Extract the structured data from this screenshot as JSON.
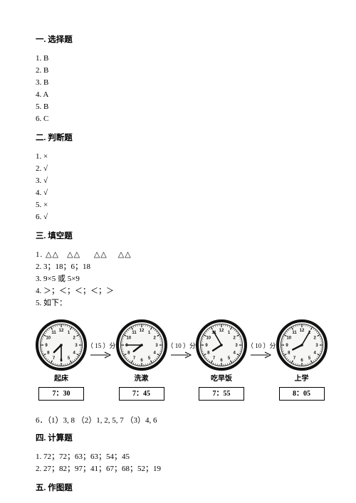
{
  "sections": {
    "s1": {
      "title": "一. 选择题"
    },
    "s2": {
      "title": "二. 判断题"
    },
    "s3": {
      "title": "三. 填空题"
    },
    "s4": {
      "title": "四. 计算题"
    },
    "s5": {
      "title": "五. 作图题"
    }
  },
  "choice_answers": {
    "a1": "1. B",
    "a2": "2. B",
    "a3": "3. B",
    "a4": "4. A",
    "a5": "5. B",
    "a6": "6. C"
  },
  "judge_answers": {
    "a1": "1. ×",
    "a2": "2. √",
    "a3": "3. √",
    "a4": "4. √",
    "a5": "5. ×",
    "a6": "6. √"
  },
  "fill_answers": {
    "a1": "1. △△   △△     △△    △△",
    "a2": "2. 3；18；6；18",
    "a3": "3. 9×5 或 5×9",
    "a4": "4. ＞；＜；＜；＜；＞",
    "a5": "5. 如下：",
    "a6": "6．（1）3, 8  （2）1, 2, 5, 7  （3）4, 6"
  },
  "calc_answers": {
    "a1": "1. 72；72；63；63；54；45",
    "a2": "2. 27；82；97；41；67；68；52；19"
  },
  "clocks": {
    "c1": {
      "label": "起床",
      "time": "7：30",
      "hour_angle": 225,
      "minute_angle": 180
    },
    "c2": {
      "label": "洗漱",
      "time": "7：45",
      "hour_angle": 232,
      "minute_angle": 270
    },
    "c3": {
      "label": "吃早饭",
      "time": "7：55",
      "hour_angle": 237,
      "minute_angle": 330
    },
    "c4": {
      "label": "上学",
      "time": "8：05",
      "hour_angle": 243,
      "minute_angle": 30
    }
  },
  "gaps": {
    "g1": "（ 15 ）分",
    "g2": "（ 10 ）分",
    "g3": "（ 10 ）分"
  },
  "clock_style": {
    "radius": 34,
    "outer_stroke": "#111",
    "outer_width": 4,
    "inner_stroke": "#111",
    "hand_color": "#111",
    "bg": "#f6f6f4"
  }
}
